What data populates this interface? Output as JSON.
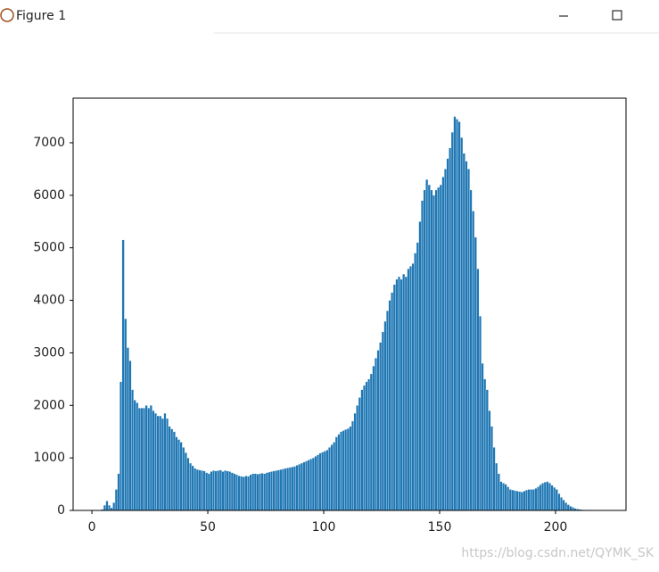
{
  "window": {
    "title": "Figure 1"
  },
  "chart_data": {
    "type": "histogram",
    "color": "#1f77b4",
    "watermark": "https://blog.csdn.net/QYMK_SK",
    "xlim": [
      -8.1,
      230.4
    ],
    "ylim": [
      0,
      7849
    ],
    "xticks": [
      0,
      50,
      100,
      150,
      200
    ],
    "yticks": [
      0,
      1000,
      2000,
      3000,
      4000,
      5000,
      6000,
      7000
    ],
    "bins": [
      4,
      5,
      6,
      7,
      8,
      9,
      10,
      11,
      12,
      13,
      14,
      15,
      16,
      17,
      18,
      19,
      20,
      21,
      22,
      23,
      24,
      25,
      26,
      27,
      28,
      29,
      30,
      31,
      32,
      33,
      34,
      35,
      36,
      37,
      38,
      39,
      40,
      41,
      42,
      43,
      44,
      45,
      46,
      47,
      48,
      49,
      50,
      51,
      52,
      53,
      54,
      55,
      56,
      57,
      58,
      59,
      60,
      61,
      62,
      63,
      64,
      65,
      66,
      67,
      68,
      69,
      70,
      71,
      72,
      73,
      74,
      75,
      76,
      77,
      78,
      79,
      80,
      81,
      82,
      83,
      84,
      85,
      86,
      87,
      88,
      89,
      90,
      91,
      92,
      93,
      94,
      95,
      96,
      97,
      98,
      99,
      100,
      101,
      102,
      103,
      104,
      105,
      106,
      107,
      108,
      109,
      110,
      111,
      112,
      113,
      114,
      115,
      116,
      117,
      118,
      119,
      120,
      121,
      122,
      123,
      124,
      125,
      126,
      127,
      128,
      129,
      130,
      131,
      132,
      133,
      134,
      135,
      136,
      137,
      138,
      139,
      140,
      141,
      142,
      143,
      144,
      145,
      146,
      147,
      148,
      149,
      150,
      151,
      152,
      153,
      154,
      155,
      156,
      157,
      158,
      159,
      160,
      161,
      162,
      163,
      164,
      165,
      166,
      167,
      168,
      169,
      170,
      171,
      172,
      173,
      174,
      175,
      176,
      177,
      178,
      179,
      180,
      181,
      182,
      183,
      184,
      185,
      186,
      187,
      188,
      189,
      190,
      191,
      192,
      193,
      194,
      195,
      196,
      197,
      198,
      199,
      200,
      201,
      202,
      203,
      204,
      205,
      206,
      207,
      208,
      209,
      210,
      211,
      212,
      213,
      214,
      215,
      216
    ],
    "counts": [
      20,
      100,
      180,
      100,
      50,
      150,
      400,
      700,
      2450,
      5150,
      3650,
      3100,
      2850,
      2300,
      2100,
      2050,
      1950,
      1950,
      1950,
      2000,
      1950,
      2000,
      1900,
      1850,
      1800,
      1800,
      1750,
      1850,
      1750,
      1600,
      1550,
      1500,
      1400,
      1350,
      1300,
      1200,
      1100,
      1000,
      900,
      850,
      800,
      780,
      770,
      760,
      750,
      720,
      700,
      740,
      760,
      750,
      760,
      770,
      740,
      760,
      750,
      740,
      720,
      700,
      680,
      660,
      650,
      640,
      660,
      650,
      680,
      700,
      700,
      690,
      700,
      710,
      700,
      720,
      730,
      740,
      750,
      760,
      770,
      780,
      790,
      800,
      810,
      820,
      830,
      840,
      860,
      880,
      900,
      920,
      940,
      960,
      980,
      1000,
      1030,
      1060,
      1090,
      1110,
      1130,
      1150,
      1200,
      1250,
      1300,
      1400,
      1450,
      1500,
      1520,
      1540,
      1560,
      1600,
      1700,
      1850,
      2000,
      2150,
      2300,
      2380,
      2450,
      2500,
      2600,
      2750,
      2900,
      3050,
      3200,
      3400,
      3600,
      3800,
      4000,
      4150,
      4300,
      4400,
      4450,
      4400,
      4500,
      4450,
      4600,
      4650,
      4700,
      4900,
      5100,
      5500,
      5900,
      6100,
      6300,
      6200,
      6100,
      6000,
      6100,
      6150,
      6200,
      6350,
      6500,
      6700,
      6900,
      7200,
      7500,
      7450,
      7400,
      7100,
      6800,
      6650,
      6500,
      6100,
      5700,
      5200,
      4600,
      3700,
      2800,
      2500,
      2300,
      1900,
      1600,
      1200,
      900,
      700,
      550,
      520,
      500,
      450,
      400,
      390,
      380,
      370,
      360,
      350,
      370,
      390,
      400,
      400,
      400,
      420,
      450,
      490,
      520,
      540,
      550,
      520,
      480,
      440,
      400,
      320,
      250,
      200,
      150,
      110,
      80,
      60,
      40,
      30,
      20,
      15,
      10,
      10,
      10,
      10
    ]
  }
}
